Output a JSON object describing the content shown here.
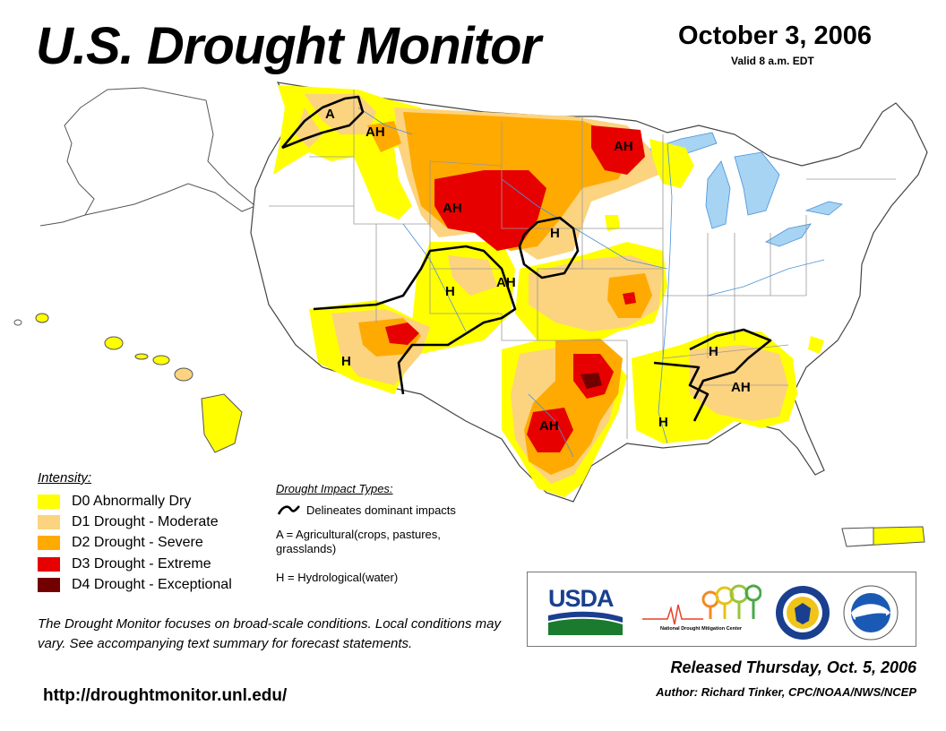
{
  "header": {
    "title": "U.S. Drought Monitor",
    "date": "October 3, 2006",
    "valid": "Valid 8 a.m. EDT"
  },
  "colors": {
    "d0": "#ffff00",
    "d1": "#fcd37f",
    "d2": "#ffaa00",
    "d3": "#e60000",
    "d4": "#730000",
    "water": "#a6d4f2",
    "state_border": "#a0a0a0",
    "river": "#4a90d9"
  },
  "legend": {
    "title": "Intensity:",
    "items": [
      {
        "code": "D0",
        "label": "D0 Abnormally Dry",
        "color": "#ffff00"
      },
      {
        "code": "D1",
        "label": "D1 Drought - Moderate",
        "color": "#fcd37f"
      },
      {
        "code": "D2",
        "label": "D2 Drought - Severe",
        "color": "#ffaa00"
      },
      {
        "code": "D3",
        "label": "D3 Drought - Extreme",
        "color": "#e60000"
      },
      {
        "code": "D4",
        "label": "D4 Drought - Exceptional",
        "color": "#730000"
      }
    ]
  },
  "impacts": {
    "title": "Drought Impact Types:",
    "delineates": "Delineates dominant impacts",
    "agricultural": "A = Agricultural(crops, pastures, grasslands)",
    "hydrological": "H = Hydrological(water)"
  },
  "map_labels": [
    "A",
    "AH",
    "AH",
    "AH",
    "H",
    "H",
    "AH",
    "H",
    "AH",
    "H",
    "AH",
    "H"
  ],
  "footer": {
    "note": "The Drought Monitor focuses on broad-scale conditions. Local conditions may vary. See accompanying text summary for forecast statements.",
    "url": "http://droughtmonitor.unl.edu/",
    "released": "Released Thursday, Oct. 5, 2006",
    "author": "Author: Richard Tinker, CPC/NOAA/NWS/NCEP"
  },
  "logos": {
    "usda": "USDA",
    "ndmc": "National Drought Mitigation Center"
  }
}
